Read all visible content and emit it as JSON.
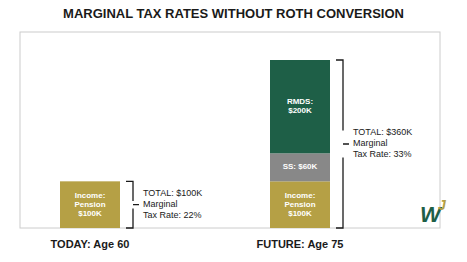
{
  "chart_data": {
    "type": "bar",
    "stacked": true,
    "title": "MARGINAL TAX RATES WITHOUT ROTH CONVERSION",
    "categories": [
      "TODAY: Age 60",
      "FUTURE: Age 75"
    ],
    "series": [
      {
        "color": "#b5a045",
        "values": [
          100,
          100
        ],
        "value_labels": [
          "Income:\nPension\n$100K",
          "Income:\nPension\n$100K"
        ]
      },
      {
        "color": "#888888",
        "values": [
          null,
          60
        ],
        "value_labels": [
          null,
          "SS: $60K"
        ]
      },
      {
        "color": "#1e5f47",
        "values": [
          null,
          200
        ],
        "value_labels": [
          null,
          "RMDS:\n$200K"
        ]
      }
    ],
    "data_labels": true,
    "ylim": [
      0,
      420
    ],
    "tick_labels": "x",
    "grid": false,
    "annotations": [
      {
        "total": 100,
        "lines": [
          "TOTAL: $100K",
          "Marginal",
          "Tax Rate: 22%"
        ]
      },
      {
        "total": 360,
        "lines": [
          "TOTAL: $360K",
          "Marginal",
          "Tax Rate: 33%"
        ]
      }
    ],
    "logo_text": [
      "W",
      "J"
    ]
  }
}
